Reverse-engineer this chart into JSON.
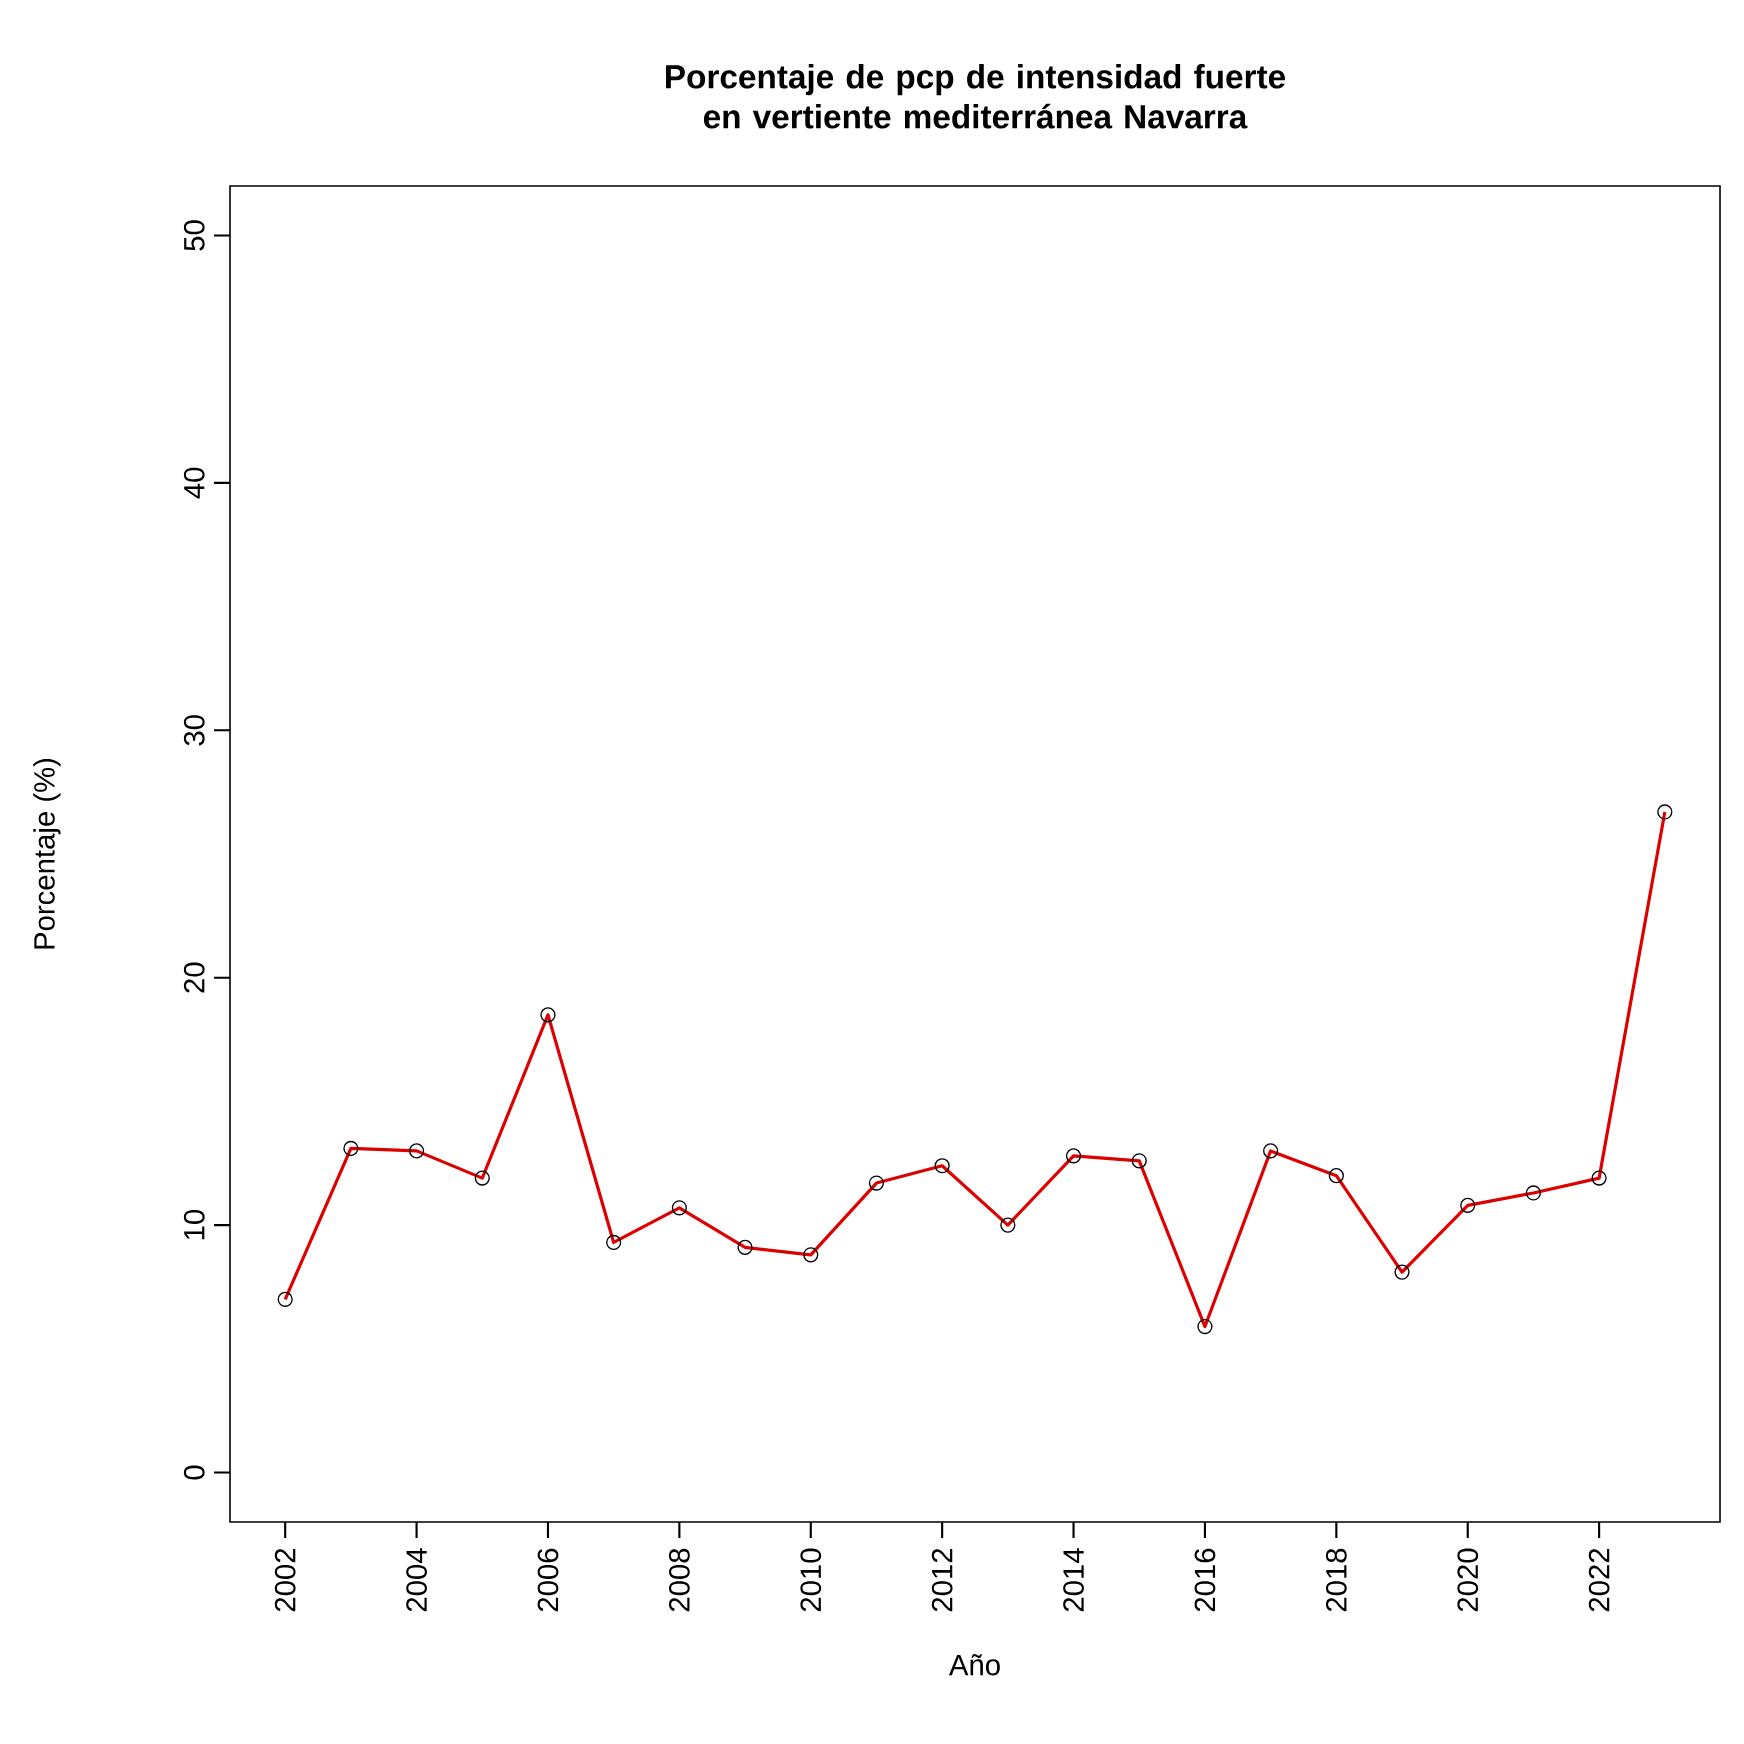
{
  "chart_data": {
    "type": "line",
    "title": "Porcentaje de pcp de intensidad fuerte en vertiente mediterránea Navarra",
    "xlabel": "Año",
    "ylabel": "Porcentaje (%)",
    "x": [
      2002,
      2003,
      2004,
      2005,
      2006,
      2007,
      2008,
      2009,
      2010,
      2011,
      2012,
      2013,
      2014,
      2015,
      2016,
      2017,
      2018,
      2019,
      2020,
      2021,
      2022,
      2023
    ],
    "series": [
      {
        "color": "#dd0000",
        "values": [
          7.0,
          13.1,
          13.0,
          11.9,
          18.5,
          9.3,
          10.7,
          9.1,
          8.8,
          11.7,
          12.4,
          10.0,
          12.8,
          12.6,
          5.9,
          13.0,
          12.0,
          8.1,
          10.8,
          11.3,
          11.9,
          26.7
        ]
      }
    ],
    "xlim": [
      2001.16,
      2023.84
    ],
    "ylim": [
      -2,
      52
    ],
    "xticks": [
      2002,
      2004,
      2006,
      2008,
      2010,
      2012,
      2014,
      2016,
      2018,
      2020,
      2022
    ],
    "yticks": [
      0,
      10,
      20,
      30,
      40,
      50
    ],
    "marker": "circle",
    "line_style": "solid",
    "grid": false
  }
}
